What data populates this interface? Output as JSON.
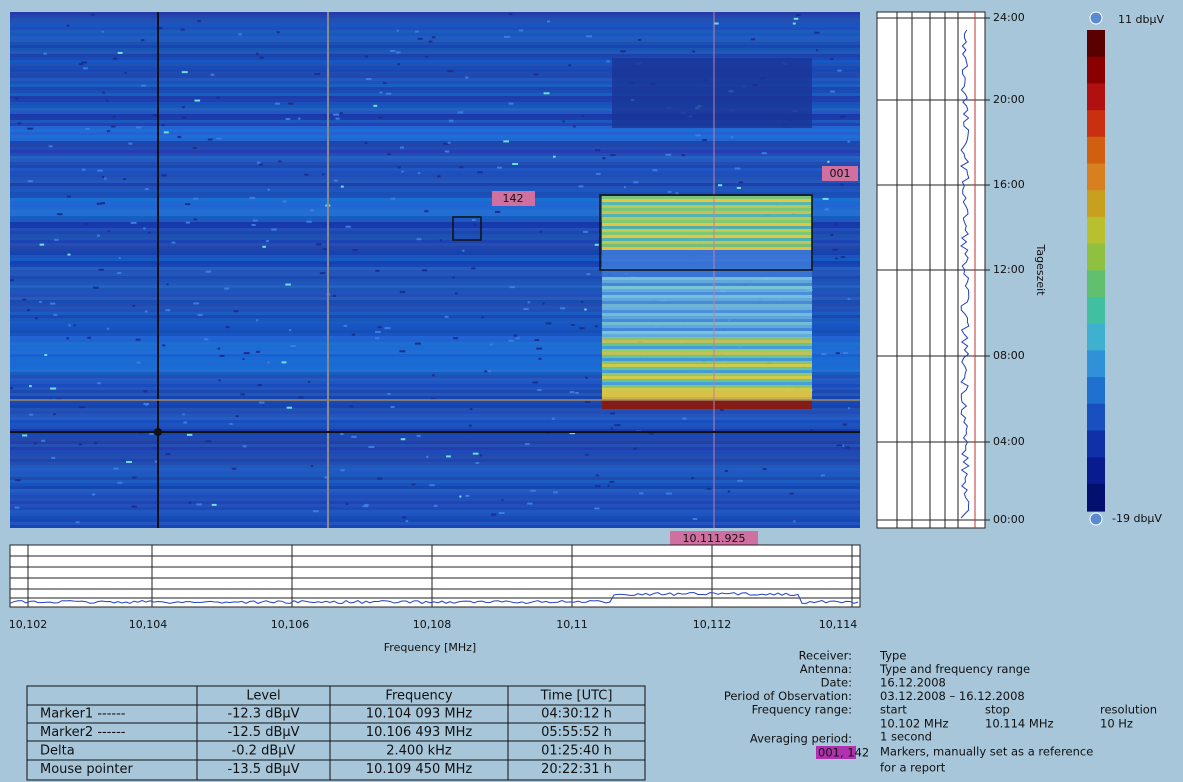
{
  "waterfall": {
    "markers": [
      "142",
      "001"
    ],
    "cursor_frequency": "10.111.925",
    "frequency_ticks": [
      "10,102",
      "10,104",
      "10,106",
      "10,108",
      "10,11",
      "10,112",
      "10,114"
    ],
    "x_axis_label": "Frequency [MHz]",
    "time_ticks": [
      "24:00",
      "20:00",
      "16:00",
      "12:00",
      "08:00",
      "04:00",
      "00:00"
    ],
    "y_axis_label": "Tageszeit",
    "colorbar": {
      "max": "11 dbµV",
      "min": "-19 dbµV"
    }
  },
  "table": {
    "header": [
      "Level",
      "Frequency",
      "Time [UTC]"
    ],
    "rows": [
      [
        "Marker1 ------",
        "-12.3 dBµV",
        "10.104 093 MHz",
        "04:30:12 h"
      ],
      [
        "Marker2 ------",
        "-12.5 dBµV",
        "10.106 493 MHz",
        "05:55:52 h"
      ],
      [
        "Delta",
        "-0.2 dBµV",
        "2.400 kHz",
        "01:25:40 h"
      ],
      [
        "Mouse pointer",
        "-13.5 dBµV",
        "10.109 450 MHz",
        "20:22:31 h"
      ]
    ]
  },
  "info": {
    "rows": [
      {
        "key": "Receiver:",
        "value": "Type"
      },
      {
        "key": "Antenna:",
        "value": "Type and frequency range"
      },
      {
        "key": "Date:",
        "value": "16.12.2008"
      },
      {
        "key": "Period of Observation:",
        "value": "03.12.2008 – 16.12.2008"
      }
    ],
    "frequency_range": {
      "key": "Frequency range:",
      "columns": [
        "start",
        "stop",
        "resolution"
      ],
      "values": [
        "10.102 MHz",
        "10.114 MHz",
        "10 Hz"
      ]
    },
    "averaging": {
      "key": "Averaging period:",
      "value": "1 second"
    },
    "marker_ids": "001, 142",
    "note": [
      "Markers, manually set as a reference",
      "for a report"
    ]
  }
}
